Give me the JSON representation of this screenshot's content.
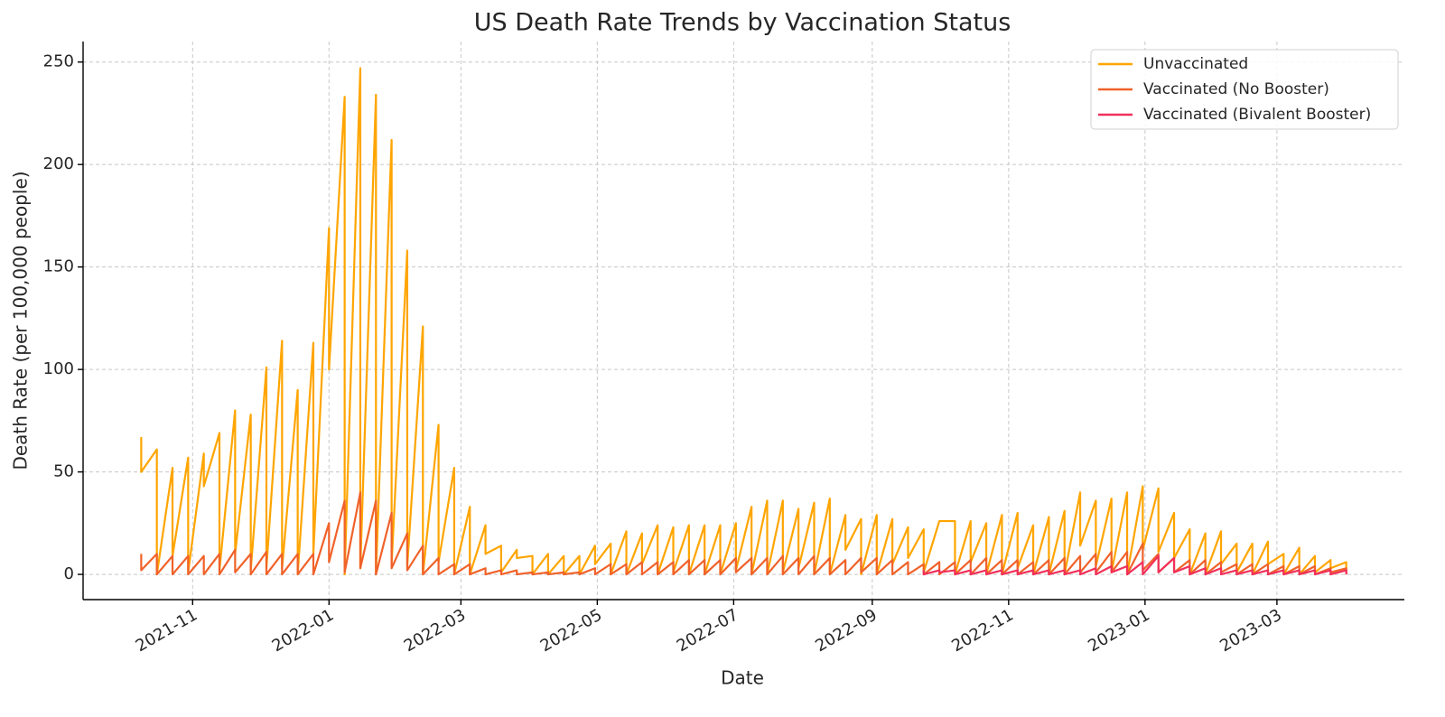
{
  "chart_data": {
    "type": "line",
    "title": "US Death Rate Trends by Vaccination Status",
    "xlabel": "Date",
    "ylabel": "Death Rate (per 100,000 people)",
    "grid": true,
    "legend": "upper right",
    "xlim": [
      "2021-09-13",
      "2023-04-27"
    ],
    "ylim": [
      -12.3,
      260
    ],
    "yticks": [
      0,
      50,
      100,
      150,
      200,
      250
    ],
    "xticks": [
      {
        "value": "2021-11-01",
        "label": "2021-11"
      },
      {
        "value": "2022-01-01",
        "label": "2022-01"
      },
      {
        "value": "2022-03-01",
        "label": "2022-03"
      },
      {
        "value": "2022-05-01",
        "label": "2022-05"
      },
      {
        "value": "2022-07-01",
        "label": "2022-07"
      },
      {
        "value": "2022-09-01",
        "label": "2022-09"
      },
      {
        "value": "2022-11-01",
        "label": "2022-11"
      },
      {
        "value": "2023-01-01",
        "label": "2023-01"
      },
      {
        "value": "2023-03-01",
        "label": "2023-03"
      }
    ],
    "x": [
      "2021-10-09",
      "2021-10-09",
      "2021-10-16",
      "2021-10-16",
      "2021-10-23",
      "2021-10-23",
      "2021-10-30",
      "2021-10-30",
      "2021-11-06",
      "2021-11-06",
      "2021-11-13",
      "2021-11-13",
      "2021-11-20",
      "2021-11-20",
      "2021-11-27",
      "2021-11-27",
      "2021-12-04",
      "2021-12-04",
      "2021-12-11",
      "2021-12-11",
      "2021-12-18",
      "2021-12-18",
      "2021-12-25",
      "2021-12-25",
      "2022-01-01",
      "2022-01-01",
      "2022-01-08",
      "2022-01-08",
      "2022-01-15",
      "2022-01-15",
      "2022-01-22",
      "2022-01-22",
      "2022-01-29",
      "2022-01-29",
      "2022-02-05",
      "2022-02-05",
      "2022-02-12",
      "2022-02-12",
      "2022-02-19",
      "2022-02-19",
      "2022-02-26",
      "2022-02-26",
      "2022-03-05",
      "2022-03-05",
      "2022-03-12",
      "2022-03-12",
      "2022-03-19",
      "2022-03-19",
      "2022-03-26",
      "2022-03-26",
      "2022-04-02",
      "2022-04-02",
      "2022-04-09",
      "2022-04-09",
      "2022-04-16",
      "2022-04-16",
      "2022-04-23",
      "2022-04-23",
      "2022-04-30",
      "2022-04-30",
      "2022-05-07",
      "2022-05-07",
      "2022-05-14",
      "2022-05-14",
      "2022-05-21",
      "2022-05-21",
      "2022-05-28",
      "2022-05-28",
      "2022-06-04",
      "2022-06-04",
      "2022-06-11",
      "2022-06-11",
      "2022-06-18",
      "2022-06-18",
      "2022-06-25",
      "2022-06-25",
      "2022-07-02",
      "2022-07-02",
      "2022-07-09",
      "2022-07-09",
      "2022-07-16",
      "2022-07-16",
      "2022-07-23",
      "2022-07-23",
      "2022-07-30",
      "2022-07-30",
      "2022-08-06",
      "2022-08-06",
      "2022-08-13",
      "2022-08-13",
      "2022-08-20",
      "2022-08-20",
      "2022-08-27",
      "2022-08-27",
      "2022-09-03",
      "2022-09-03",
      "2022-09-10",
      "2022-09-10",
      "2022-09-17",
      "2022-09-17",
      "2022-09-24",
      "2022-09-24",
      "2022-10-01",
      "2022-10-01",
      "2022-10-08",
      "2022-10-08",
      "2022-10-15",
      "2022-10-15",
      "2022-10-22",
      "2022-10-22",
      "2022-10-29",
      "2022-10-29",
      "2022-11-05",
      "2022-11-05",
      "2022-11-12",
      "2022-11-12",
      "2022-11-19",
      "2022-11-19",
      "2022-11-26",
      "2022-11-26",
      "2022-12-03",
      "2022-12-03",
      "2022-12-10",
      "2022-12-10",
      "2022-12-17",
      "2022-12-17",
      "2022-12-24",
      "2022-12-24",
      "2022-12-31",
      "2022-12-31",
      "2023-01-07",
      "2023-01-07",
      "2023-01-14",
      "2023-01-14",
      "2023-01-21",
      "2023-01-21",
      "2023-01-28",
      "2023-01-28",
      "2023-02-04",
      "2023-02-04",
      "2023-02-11",
      "2023-02-11",
      "2023-02-18",
      "2023-02-18",
      "2023-02-25",
      "2023-02-25",
      "2023-03-04",
      "2023-03-04",
      "2023-03-11",
      "2023-03-11",
      "2023-03-18",
      "2023-03-18",
      "2023-03-25",
      "2023-03-25",
      "2023-04-01",
      "2023-04-01"
    ],
    "series": [
      {
        "name": "Unvaccinated",
        "color": "#ffa500",
        "values": [
          67,
          50,
          61,
          0,
          52,
          9,
          57,
          1,
          59,
          43,
          69,
          2,
          80,
          10,
          78,
          2,
          101,
          3,
          114,
          3,
          90,
          0,
          113,
          10,
          169,
          100,
          233,
          0,
          247,
          3,
          234,
          0,
          212,
          5,
          158,
          4,
          121,
          0,
          73,
          6,
          52,
          0,
          33,
          0,
          24,
          10,
          14,
          1,
          12,
          8,
          9,
          0,
          10,
          0,
          9,
          0,
          9,
          0,
          14,
          5,
          15,
          0,
          21,
          0,
          20,
          5,
          24,
          0,
          23,
          1,
          24,
          0,
          24,
          0,
          24,
          0,
          25,
          2,
          33,
          0,
          36,
          0,
          36,
          1,
          32,
          3,
          35,
          0,
          37,
          0,
          29,
          12,
          27,
          0,
          29,
          0,
          27,
          5,
          23,
          8,
          22,
          1,
          26,
          26,
          26,
          0,
          26,
          6,
          25,
          0,
          29,
          0,
          30,
          3,
          24,
          0,
          28,
          0,
          31,
          0,
          40,
          14,
          36,
          4,
          37,
          1,
          40,
          0,
          43,
          12,
          42,
          11,
          30,
          8,
          22,
          0,
          20,
          0,
          21,
          5,
          15,
          1,
          15,
          0,
          16,
          5,
          10,
          0,
          13,
          0,
          9,
          1,
          7,
          3,
          6,
          1
        ]
      },
      {
        "name": "Vaccinated (No Booster)",
        "color": "#f0622a",
        "values": [
          10,
          2,
          10,
          0,
          9,
          0,
          9,
          0,
          9,
          0,
          10,
          0,
          12,
          1,
          10,
          0,
          11,
          0,
          10,
          0,
          10,
          0,
          10,
          0,
          25,
          6,
          36,
          1,
          40,
          3,
          36,
          0,
          30,
          3,
          20,
          2,
          14,
          0,
          8,
          0,
          5,
          0,
          5,
          0,
          3,
          0,
          2,
          0,
          2,
          0,
          1,
          0,
          1,
          0,
          1,
          0,
          1,
          0,
          3,
          0,
          5,
          0,
          5,
          0,
          6,
          0,
          6,
          0,
          6,
          0,
          7,
          0,
          7,
          0,
          7,
          0,
          8,
          1,
          8,
          0,
          8,
          0,
          9,
          0,
          8,
          0,
          9,
          0,
          8,
          0,
          7,
          0,
          8,
          1,
          8,
          0,
          7,
          0,
          6,
          0,
          5,
          0,
          6,
          0,
          6,
          0,
          7,
          0,
          8,
          0,
          7,
          0,
          7,
          0,
          6,
          0,
          7,
          0,
          8,
          0,
          9,
          1,
          10,
          1,
          11,
          1,
          11,
          0,
          15,
          2,
          10,
          1,
          8,
          1,
          7,
          0,
          7,
          0,
          6,
          1,
          5,
          0,
          5,
          0,
          5,
          0,
          4,
          0,
          4,
          0,
          4,
          0,
          3,
          1,
          3,
          0
        ]
      },
      {
        "name": "Vaccinated (Bivalent Booster)",
        "color": "#f0305a",
        "values": [
          null,
          null,
          null,
          null,
          null,
          null,
          null,
          null,
          null,
          null,
          null,
          null,
          null,
          null,
          null,
          null,
          null,
          null,
          null,
          null,
          null,
          null,
          null,
          null,
          null,
          null,
          null,
          null,
          null,
          null,
          null,
          null,
          null,
          null,
          null,
          null,
          null,
          null,
          null,
          null,
          null,
          null,
          null,
          null,
          null,
          null,
          null,
          null,
          null,
          null,
          null,
          null,
          null,
          null,
          null,
          null,
          null,
          null,
          null,
          null,
          null,
          null,
          null,
          null,
          null,
          null,
          null,
          null,
          null,
          null,
          null,
          null,
          null,
          null,
          null,
          null,
          null,
          null,
          null,
          null,
          null,
          null,
          null,
          null,
          null,
          null,
          null,
          null,
          null,
          null,
          null,
          null,
          null,
          null,
          null,
          null,
          null,
          null,
          null,
          null,
          2,
          0,
          2,
          1,
          2,
          0,
          2,
          0,
          2,
          0,
          2,
          0,
          2,
          0,
          2,
          0,
          2,
          0,
          2,
          0,
          2,
          0,
          3,
          0,
          4,
          1,
          4,
          0,
          6,
          0,
          9,
          1,
          8,
          1,
          4,
          0,
          3,
          0,
          3,
          0,
          2,
          0,
          2,
          0,
          2,
          0,
          2,
          0,
          2,
          0,
          2,
          0,
          2,
          0,
          2,
          0
        ]
      }
    ]
  }
}
